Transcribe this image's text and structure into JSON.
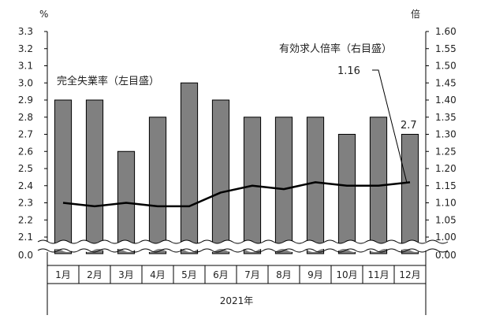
{
  "chart_data": {
    "type": "bar+line",
    "categories": [
      "1月",
      "2月",
      "3月",
      "4月",
      "5月",
      "6月",
      "7月",
      "8月",
      "9月",
      "10月",
      "11月",
      "12月"
    ],
    "x_group_label": "2021年",
    "series": [
      {
        "name": "完全失業率（左目盛）",
        "type": "bar",
        "axis": "left",
        "values": [
          2.9,
          2.9,
          2.6,
          2.8,
          3.0,
          2.9,
          2.8,
          2.8,
          2.8,
          2.7,
          2.8,
          2.7
        ],
        "color": "#808080"
      },
      {
        "name": "有効求人倍率（右目盛）",
        "type": "line",
        "axis": "right",
        "values": [
          1.1,
          1.09,
          1.1,
          1.09,
          1.09,
          1.13,
          1.15,
          1.14,
          1.16,
          1.15,
          1.15,
          1.16
        ],
        "color": "#000000"
      }
    ],
    "left_axis": {
      "unit": "%",
      "ticks": [
        "3.3",
        "3.2",
        "3.1",
        "3.0",
        "2.9",
        "2.8",
        "2.7",
        "2.6",
        "2.5",
        "2.4",
        "2.3",
        "2.2",
        "2.1"
      ],
      "zero_label": "0.0",
      "range": [
        2.1,
        3.3
      ],
      "broken": true
    },
    "right_axis": {
      "unit": "倍",
      "ticks": [
        "1.60",
        "1.55",
        "1.50",
        "1.45",
        "1.40",
        "1.35",
        "1.30",
        "1.25",
        "1.20",
        "1.15",
        "1.10",
        "1.05",
        "1.00"
      ],
      "zero_label": "0.00",
      "range": [
        1.0,
        1.6
      ],
      "broken": true
    },
    "annotations": {
      "line_last_value": "1.16",
      "bar_last_value": "2.7"
    },
    "legend_placement": "in-plot labels",
    "grid": false
  }
}
